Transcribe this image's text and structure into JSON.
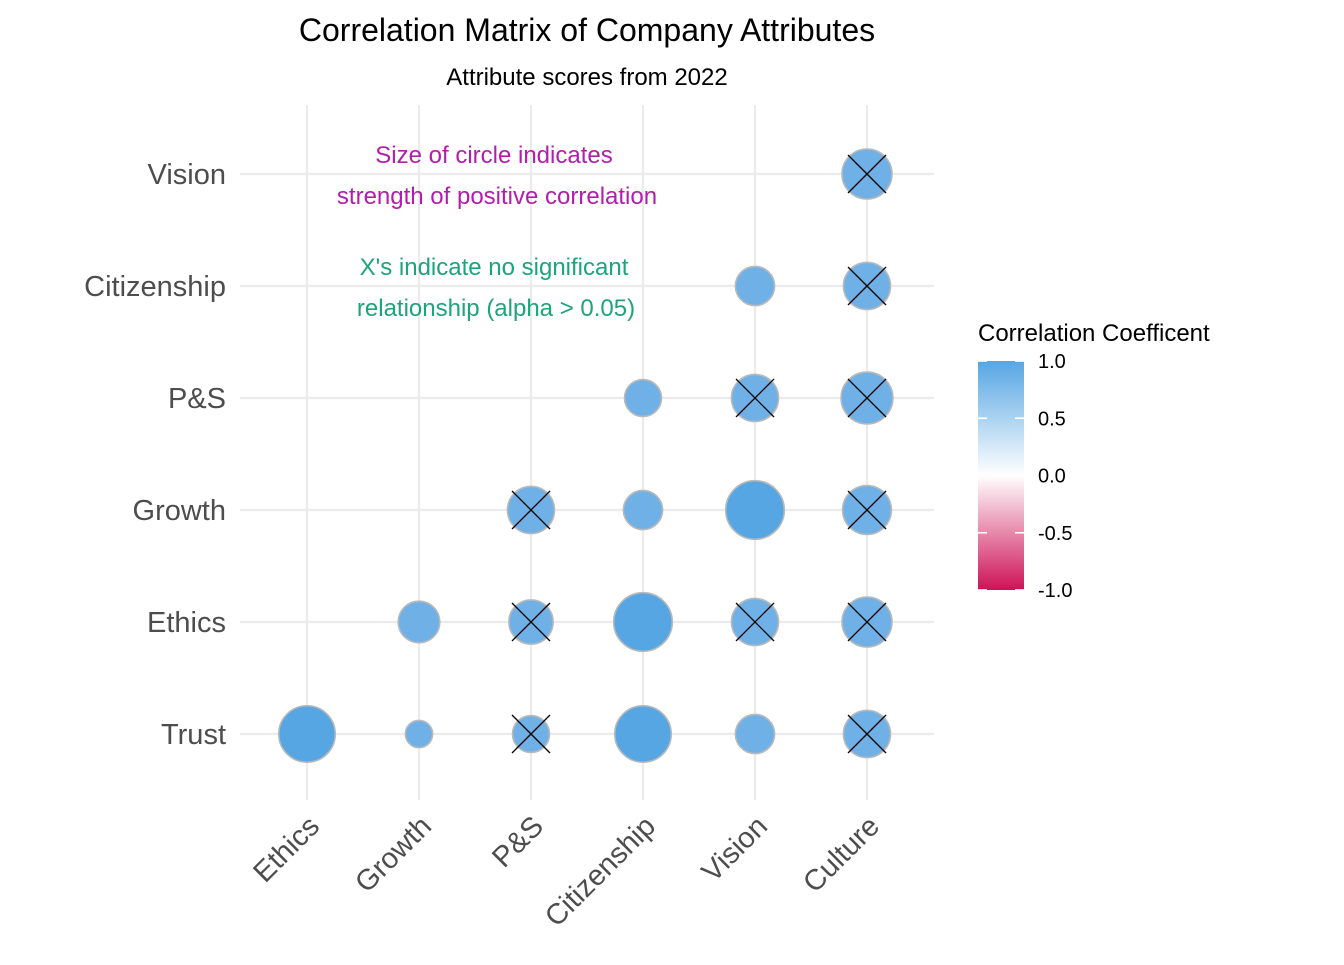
{
  "chart_data": {
    "type": "scatter",
    "title": "Correlation Matrix of Company Attributes",
    "subtitle": "Attribute scores from 2022",
    "x_categories": [
      "Ethics",
      "Growth",
      "P&S",
      "Citizenship",
      "Vision",
      "Culture"
    ],
    "y_categories": [
      "Trust",
      "Ethics",
      "Growth",
      "P&S",
      "Citizenship",
      "Vision"
    ],
    "points": [
      {
        "x": "Ethics",
        "y": "Trust",
        "r": 0.95,
        "significant": true
      },
      {
        "x": "Growth",
        "y": "Trust",
        "r": 0.3,
        "significant": true
      },
      {
        "x": "P&S",
        "y": "Trust",
        "r": 0.6,
        "significant": false
      },
      {
        "x": "Citizenship",
        "y": "Trust",
        "r": 0.95,
        "significant": true
      },
      {
        "x": "Vision",
        "y": "Trust",
        "r": 0.65,
        "significant": true
      },
      {
        "x": "Culture",
        "y": "Trust",
        "r": 0.8,
        "significant": false
      },
      {
        "x": "Growth",
        "y": "Ethics",
        "r": 0.7,
        "significant": true
      },
      {
        "x": "P&S",
        "y": "Ethics",
        "r": 0.75,
        "significant": false
      },
      {
        "x": "Citizenship",
        "y": "Ethics",
        "r": 0.98,
        "significant": true
      },
      {
        "x": "Vision",
        "y": "Ethics",
        "r": 0.8,
        "significant": false
      },
      {
        "x": "Culture",
        "y": "Ethics",
        "r": 0.85,
        "significant": false
      },
      {
        "x": "P&S",
        "y": "Growth",
        "r": 0.8,
        "significant": false
      },
      {
        "x": "Citizenship",
        "y": "Growth",
        "r": 0.65,
        "significant": true
      },
      {
        "x": "Vision",
        "y": "Growth",
        "r": 0.98,
        "significant": true
      },
      {
        "x": "Culture",
        "y": "Growth",
        "r": 0.83,
        "significant": false
      },
      {
        "x": "Citizenship",
        "y": "P&S",
        "r": 0.6,
        "significant": true
      },
      {
        "x": "Vision",
        "y": "P&S",
        "r": 0.8,
        "significant": false
      },
      {
        "x": "Culture",
        "y": "P&S",
        "r": 0.88,
        "significant": false
      },
      {
        "x": "Vision",
        "y": "Citizenship",
        "r": 0.65,
        "significant": true
      },
      {
        "x": "Culture",
        "y": "Citizenship",
        "r": 0.8,
        "significant": false
      },
      {
        "x": "Culture",
        "y": "Vision",
        "r": 0.85,
        "significant": false
      }
    ],
    "annotations": [
      {
        "lines": [
          "Size of circle indicates",
          "strength of positive correlation"
        ],
        "color": "#B31DAE"
      },
      {
        "lines": [
          "X's indicate no significant",
          "relationship (alpha > 0.05)"
        ],
        "color": "#1CA57A"
      }
    ],
    "legend": {
      "title": "Correlation Coefficent",
      "ticks": [
        "1.0",
        "0.5",
        "0.0",
        "-0.5",
        "-1.0"
      ],
      "range": [
        -1,
        1
      ],
      "colors": {
        "high": "#56A6E3",
        "mid": "#FFFFFF",
        "low": "#CE1256"
      },
      "placement": "right"
    },
    "grid": true,
    "colors": {
      "point_fill": "#5AA8E3",
      "point_stroke": "#B9B9B9",
      "grid": "#EBEBEB",
      "axis_text": "#4D4D4D"
    }
  }
}
